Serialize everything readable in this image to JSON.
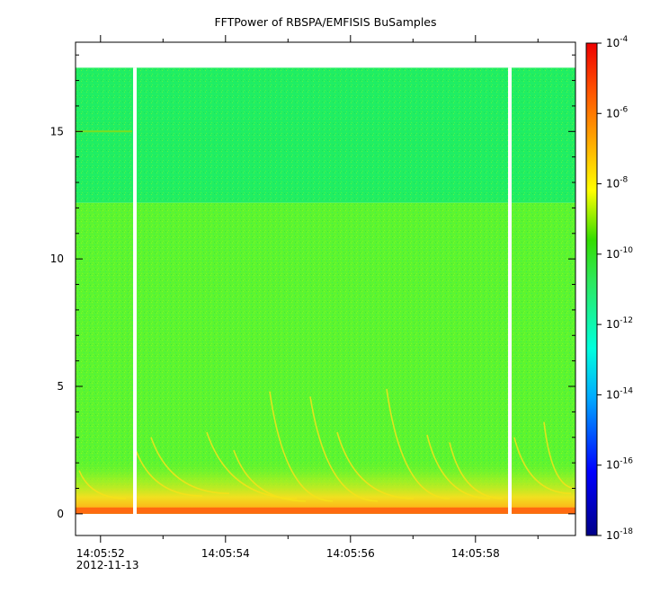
{
  "chart_data": {
    "type": "heatmap",
    "title": "FFTPower of RBSPA/EMFISIS  BuSamples",
    "xlabel": "",
    "ylabel": "",
    "x_ticks": [
      {
        "value": "14:05:52",
        "date": "2012-11-13"
      },
      {
        "value": "14:05:54",
        "date": ""
      },
      {
        "value": "14:05:56",
        "date": ""
      },
      {
        "value": "14:05:58",
        "date": ""
      }
    ],
    "x_range_seconds": [
      51.6,
      59.6
    ],
    "y_ticks": [
      0,
      5,
      10,
      15
    ],
    "ylim": [
      -0.85,
      18.5
    ],
    "z_scale": "log",
    "zlim": [
      1e-18,
      0.0001
    ],
    "colorbar_ticks": [
      {
        "base": "10",
        "exp": "-4",
        "value": 0.0001
      },
      {
        "base": "10",
        "exp": "-6",
        "value": 1e-06
      },
      {
        "base": "10",
        "exp": "-8",
        "value": 1e-08
      },
      {
        "base": "10",
        "exp": "-10",
        "value": 1e-10
      },
      {
        "base": "10",
        "exp": "-12",
        "value": 1e-12
      },
      {
        "base": "10",
        "exp": "-14",
        "value": 1e-14
      },
      {
        "base": "10",
        "exp": "-16",
        "value": 1e-16
      },
      {
        "base": "10",
        "exp": "-18",
        "value": 1e-18
      }
    ],
    "data_top": 17.5,
    "upper_band_start": 12.2,
    "data_gaps_seconds": [
      52.55,
      58.55
    ],
    "colors": {
      "background_upper": "#21ee62",
      "background_lower": "#5cf530",
      "low_band": "#f0e020",
      "floor": "#ff6a10",
      "gap": "#ffffff"
    }
  }
}
